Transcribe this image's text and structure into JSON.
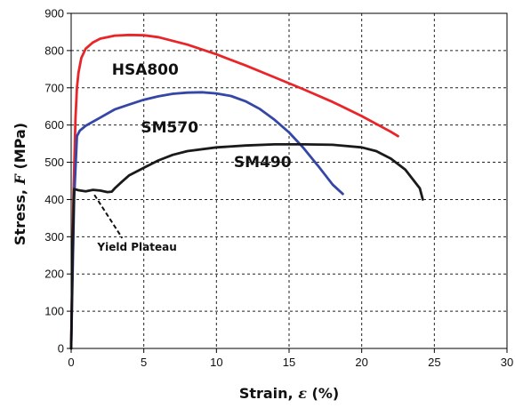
{
  "chart_data": {
    "type": "line",
    "title": "",
    "xlabel": "Strain, ε (%)",
    "ylabel": "Stress, F (MPa)",
    "xlim": [
      0,
      30
    ],
    "ylim": [
      0,
      900
    ],
    "xticks": [
      0,
      5,
      10,
      15,
      20,
      25,
      30
    ],
    "yticks": [
      0,
      100,
      200,
      300,
      400,
      500,
      600,
      700,
      800,
      900
    ],
    "grid": true,
    "series": [
      {
        "name": "HSA800",
        "color": "#e8262a",
        "x": [
          0,
          0.15,
          0.3,
          0.4,
          0.5,
          0.7,
          1,
          1.5,
          2,
          3,
          4,
          5,
          6,
          8,
          10,
          12,
          14,
          16,
          18,
          20,
          22,
          22.5
        ],
        "y": [
          0,
          400,
          620,
          700,
          740,
          780,
          805,
          822,
          832,
          840,
          842,
          841,
          836,
          816,
          790,
          760,
          728,
          696,
          662,
          624,
          582,
          570
        ]
      },
      {
        "name": "SM570",
        "color": "#3446a6",
        "x": [
          0,
          0.2,
          0.4,
          0.6,
          1,
          2,
          3,
          4,
          5,
          6,
          7,
          8,
          9,
          10,
          11,
          12,
          13,
          14,
          15,
          16,
          17,
          18,
          18.7
        ],
        "y": [
          0,
          400,
          570,
          585,
          598,
          620,
          642,
          655,
          668,
          677,
          684,
          687,
          688,
          685,
          678,
          664,
          643,
          614,
          580,
          538,
          490,
          440,
          415
        ]
      },
      {
        "name": "SM490",
        "color": "#1a1a1a",
        "x": [
          0,
          0.1,
          0.2,
          0.5,
          1,
          1.5,
          2,
          2.5,
          2.8,
          3,
          3.5,
          4,
          5,
          6,
          7,
          8,
          10,
          12,
          14,
          16,
          18,
          20,
          21,
          22,
          23,
          24,
          24.2
        ],
        "y": [
          0,
          250,
          428,
          425,
          422,
          426,
          424,
          420,
          421,
          430,
          448,
          465,
          485,
          505,
          520,
          530,
          540,
          545,
          548,
          548,
          547,
          540,
          530,
          510,
          480,
          430,
          400
        ]
      }
    ],
    "series_labels": [
      {
        "text": "HSA800",
        "x": 2.8,
        "y": 735
      },
      {
        "text": "SM570",
        "x": 4.8,
        "y": 580
      },
      {
        "text": "SM490",
        "x": 11.2,
        "y": 487
      }
    ],
    "annotations": [
      {
        "text": "Yield Plateau",
        "x": 1.6,
        "y": 422,
        "text_x": 1.8,
        "text_y": 263
      }
    ]
  }
}
